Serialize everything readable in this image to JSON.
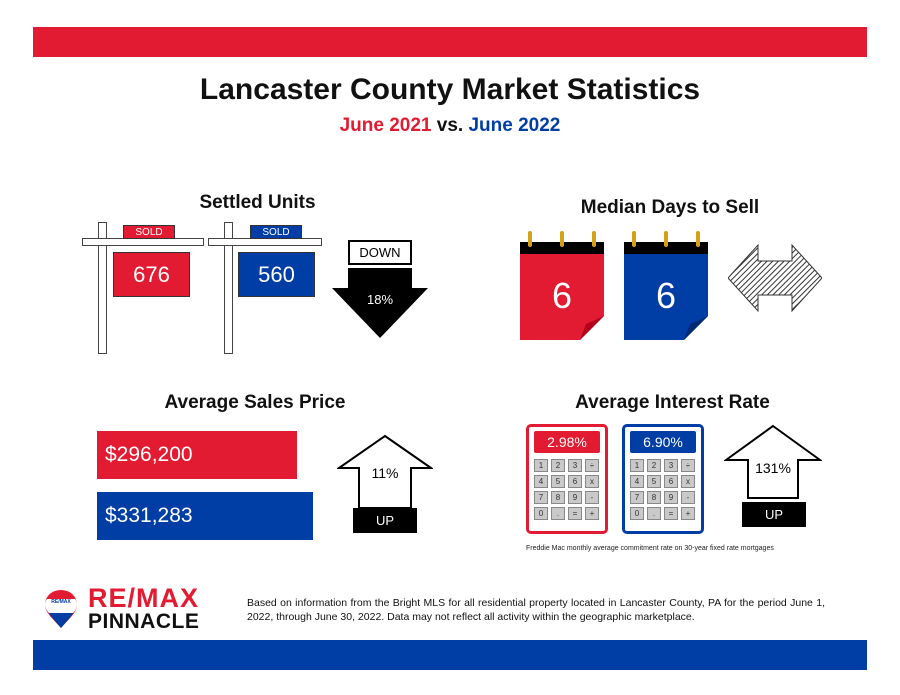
{
  "header": {
    "title": "Lancaster County Market Statistics",
    "subtitle_2021": "June 2021",
    "subtitle_vs": "vs.",
    "subtitle_2022": "June 2022"
  },
  "settled_units": {
    "heading": "Settled Units",
    "sign_label": "SOLD",
    "value_2021": "676",
    "value_2022": "560",
    "direction": "DOWN",
    "change": "18%"
  },
  "median_days": {
    "heading": "Median Days to Sell",
    "value_2021": "6",
    "value_2022": "6"
  },
  "avg_price": {
    "heading": "Average Sales Price",
    "value_2021": "$296,200",
    "value_2022": "$331,283",
    "change": "11%",
    "direction": "UP"
  },
  "interest_rate": {
    "heading": "Average Interest Rate",
    "value_2021": "2.98%",
    "value_2022": "6.90%",
    "change": "131%",
    "direction": "UP",
    "keys": [
      "1",
      "2",
      "3",
      "÷",
      "4",
      "5",
      "6",
      "x",
      "7",
      "8",
      "9",
      "-",
      "0",
      ".",
      "=",
      "+"
    ],
    "footnote": "Freddie Mac monthly average commitment rate on 30-year fixed rate mortgages"
  },
  "brand": {
    "name_top": "RE/MAX",
    "name_bottom": "PINNACLE",
    "balloon_text": "RE/MAX"
  },
  "disclaimer": "Based on information from the Bright MLS for all residential property located in Lancaster County, PA for the period June 1, 2022, through June 30, 2022.  Data may not reflect all activity within the geographic marketplace.",
  "colors": {
    "red": "#e21b32",
    "blue": "#003da5",
    "black": "#000000"
  }
}
